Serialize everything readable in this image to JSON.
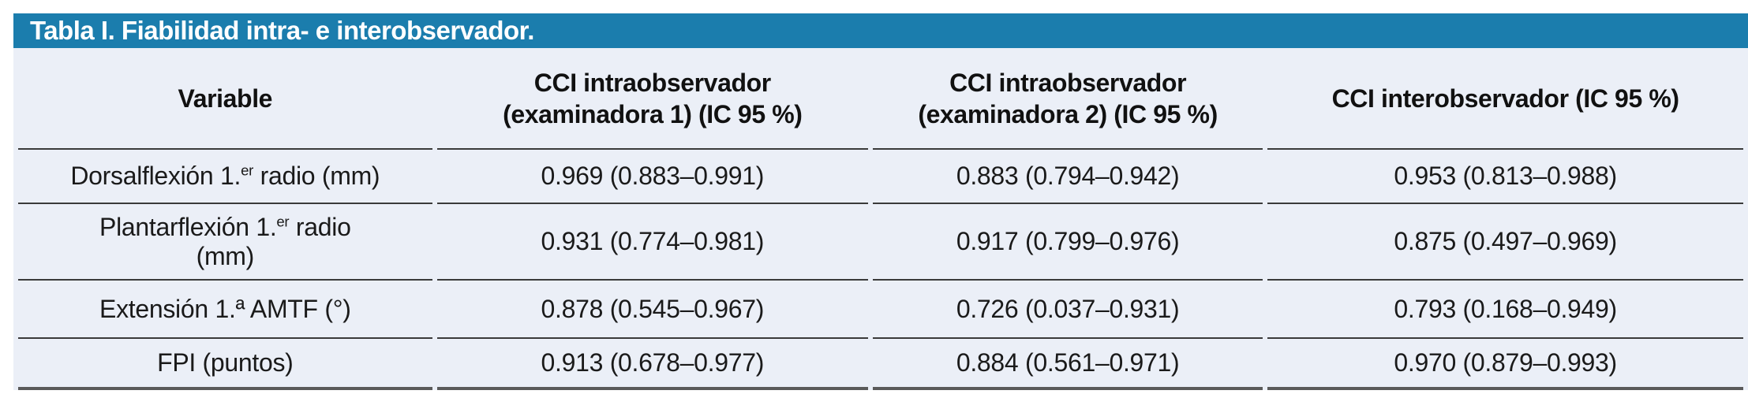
{
  "colors": {
    "accent_teal": "#1b7dad",
    "body_background": "#ebeff7",
    "rule_dark": "#3a3a3a",
    "rule_bottom": "#5a5a5a"
  },
  "table": {
    "title": "Tabla I. Fiabilidad intra- e interobservador.",
    "columns": [
      {
        "line1": "Variable",
        "line2": ""
      },
      {
        "line1": "CCI intraobservador",
        "line2": "(examinadora 1) (IC 95 %)"
      },
      {
        "line1": "CCI intraobservador",
        "line2": "(examinadora 2) (IC 95 %)"
      },
      {
        "line1": "CCI interobservador (IC 95 %)",
        "line2": ""
      }
    ],
    "rows": [
      {
        "variable": {
          "pre": "Dorsalflexión 1.",
          "sup": "er",
          "post": " radio (mm)",
          "line2": ""
        },
        "values": [
          "0.969 (0.883–0.991)",
          "0.883 (0.794–0.942)",
          "0.953 (0.813–0.988)"
        ]
      },
      {
        "variable": {
          "pre": "Plantarflexión 1.",
          "sup": "er",
          "post": " radio",
          "line2": "(mm)"
        },
        "values": [
          "0.931 (0.774–0.981)",
          "0.917 (0.799–0.976)",
          "0.875 (0.497–0.969)"
        ]
      },
      {
        "variable": {
          "pre": "Extensión 1.ª AMTF (°)",
          "sup": "",
          "post": "",
          "line2": ""
        },
        "values": [
          "0.878 (0.545–0.967)",
          "0.726 (0.037–0.931)",
          "0.793 (0.168–0.949)"
        ]
      },
      {
        "variable": {
          "pre": "FPI (puntos)",
          "sup": "",
          "post": "",
          "line2": ""
        },
        "values": [
          "0.913 (0.678–0.977)",
          "0.884 (0.561–0.971)",
          "0.970 (0.879–0.993)"
        ]
      }
    ]
  }
}
